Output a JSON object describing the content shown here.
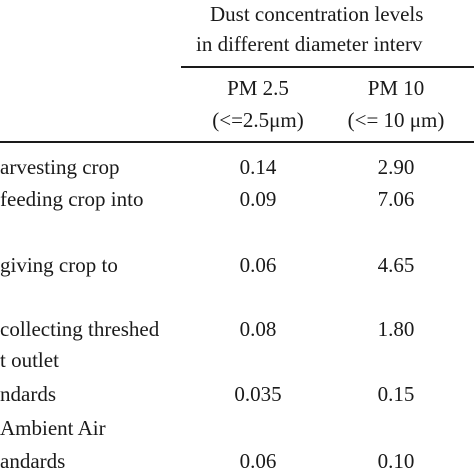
{
  "header": {
    "group_line1": "Dust concentration levels",
    "group_line2": "in different diameter interv",
    "col1": {
      "line1": "PM 2.5",
      "line2": "(<=2.5μm)"
    },
    "col2": {
      "line1": "PM 10",
      "line2": "(<= 10 μm)"
    }
  },
  "rows": [
    {
      "label_lines": [
        "arvesting crop"
      ],
      "pm25": "0.14",
      "pm10": "2.90"
    },
    {
      "label_lines": [
        "feeding crop into"
      ],
      "pm25": "0.09",
      "pm10": "7.06"
    },
    {
      "label_lines": [
        "giving crop to"
      ],
      "pm25": "0.06",
      "pm10": "4.65"
    },
    {
      "label_lines": [
        "collecting threshed",
        "t outlet"
      ],
      "pm25": "0.08",
      "pm10": "1.80"
    },
    {
      "label_lines": [
        "ndards"
      ],
      "pm25": "0.035",
      "pm10": "0.15"
    },
    {
      "label_lines": [
        "Ambient Air",
        "andards"
      ],
      "pm25": "0.06",
      "pm10": "0.10"
    }
  ]
}
